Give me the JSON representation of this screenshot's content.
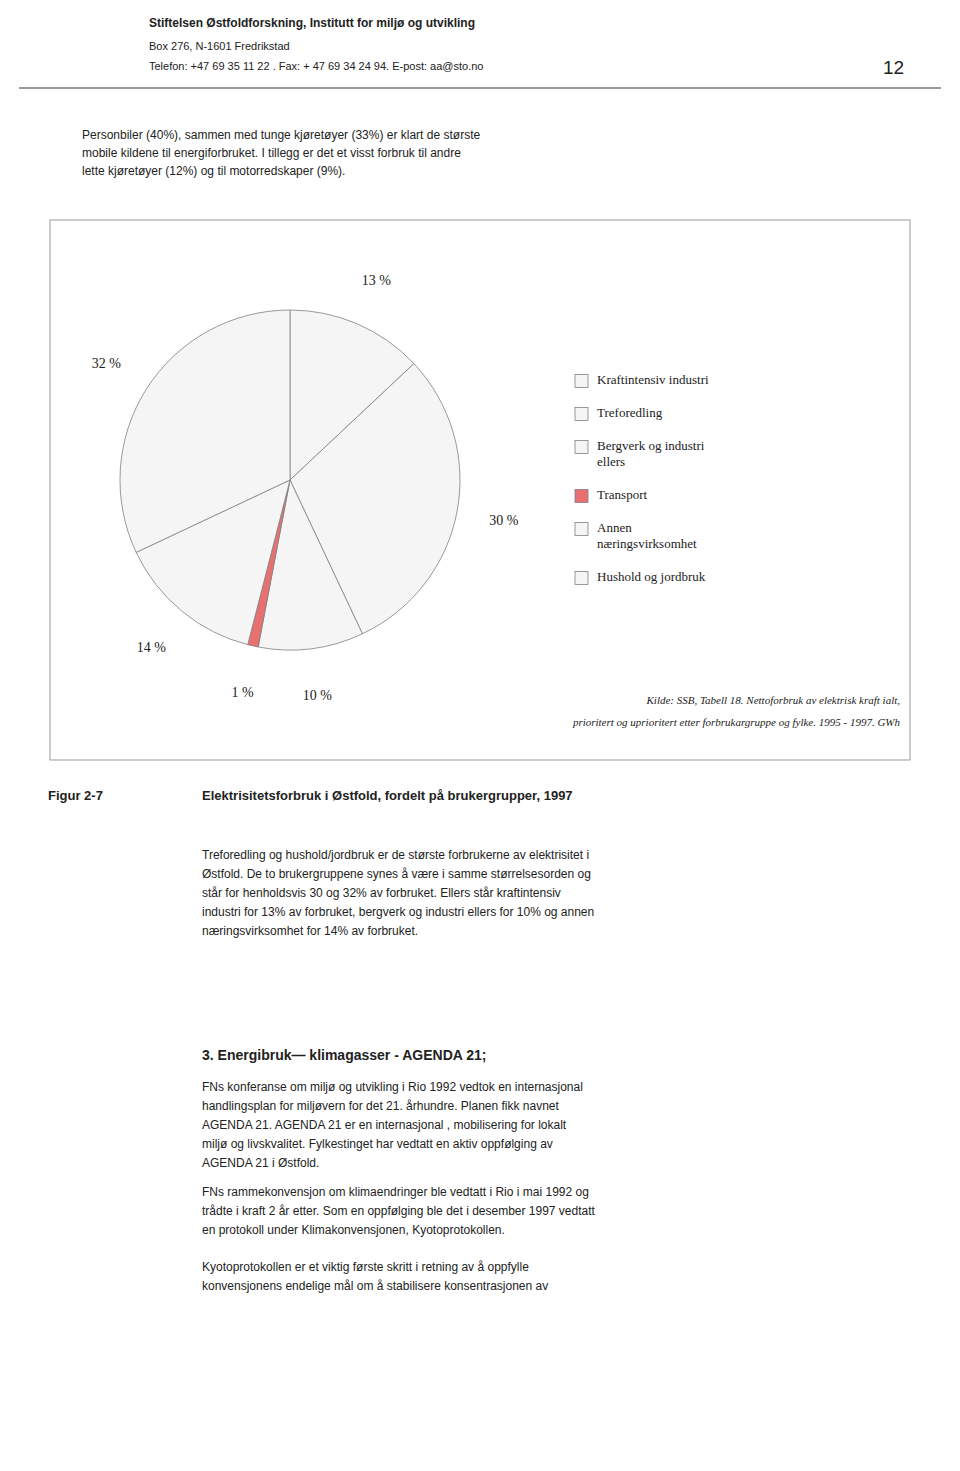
{
  "chart_data": {
    "type": "pie",
    "title": "Elektrisitetsforbruk i Østfold, fordelt på brukergrupper, 1997",
    "categories": [
      "Kraftintensiv industri",
      "Treforedling",
      "Bergverk og industri\nellers",
      "Transport",
      "Annen\nnæringsvirksomhet",
      "Hushold og jordbruk"
    ],
    "values": [
      13,
      30,
      10,
      1,
      14,
      32
    ],
    "value_labels": [
      "13 %",
      "30 %",
      "10 %",
      "1 %",
      "14 %",
      "32 %"
    ],
    "colors": [
      "#f5f5f5",
      "#f5f5f5",
      "#f5f5f5",
      "#e87070",
      "#f5f5f5",
      "#f5f5f5"
    ],
    "data_labels": true,
    "legend": "right",
    "source": [
      "Kilde: SSB, Tabell 18. Nettoforbruk av elektrisk kraft ialt,",
      "prioritert og uprioritert etter forbrukargruppe og fylke. 1995 - 1997. GWh"
    ]
  },
  "page": {
    "header_org": "Stiftelsen Østfoldforskning, Institutt for miljø og utvikling",
    "header_addr": "Box 276, N-1601 Fredrikstad",
    "header_tel": "Telefon: +47 69 35 11 22 .  Fax:  + 47 69 34 24 94.   E-post:  aa@sto.no",
    "page_number": "12",
    "intro": [
      "Personbiler (40%), sammen med tunge kjøretøyer (33%) er klart de største",
      "mobile  kildene til energiforbruket. I tillegg er det et visst forbruk til andre",
      "lette kjøretøyer (12%) og til motorredskaper (9%)."
    ],
    "caption_label": "Figur 2-7",
    "body": [
      "Treforedling og hushold/jordbruk er de største forbrukerne av elektrisitet i",
      "Østfold. De to brukergruppene synes å være i samme størrelsesorden og",
      "står for henholdsvis 30 og 32% av forbruket. Ellers står kraftintensiv",
      "industri for 13% av forbruket, bergverk og industri ellers for 10% og annen",
      "næringsvirksomhet for 14% av forbruket."
    ],
    "section_title": "3.  Energibruk—  klimagasser  - AGENDA 21;",
    "section_text": [
      [
        "FNs konferanse om miljø og utvikling i Rio 1992 vedtok en internasjonal",
        "handlingsplan for miljøvern for det 21. århundre. Planen fikk navnet",
        "AGENDA 21. AGENDA 21 er  en internasjonal , mobilisering for lokalt",
        "miljø og livskvalitet. Fylkestinget har vedtatt en aktiv oppfølging av",
        "AGENDA 21 i Østfold."
      ],
      [
        "FNs rammekonvensjon om klimaendringer ble vedtatt i Rio i mai 1992 og",
        "trådte i kraft 2 år etter. Som en oppfølging ble det i desember 1997 vedtatt",
        "en protokoll under Klimakonvensjonen, Kyotoprotokollen."
      ],
      [
        "Kyotoprotokollen er et viktig første skritt i retning av å oppfylle",
        "konvensjonens endelige mål om å stabilisere konsentrasjonen av"
      ]
    ]
  }
}
